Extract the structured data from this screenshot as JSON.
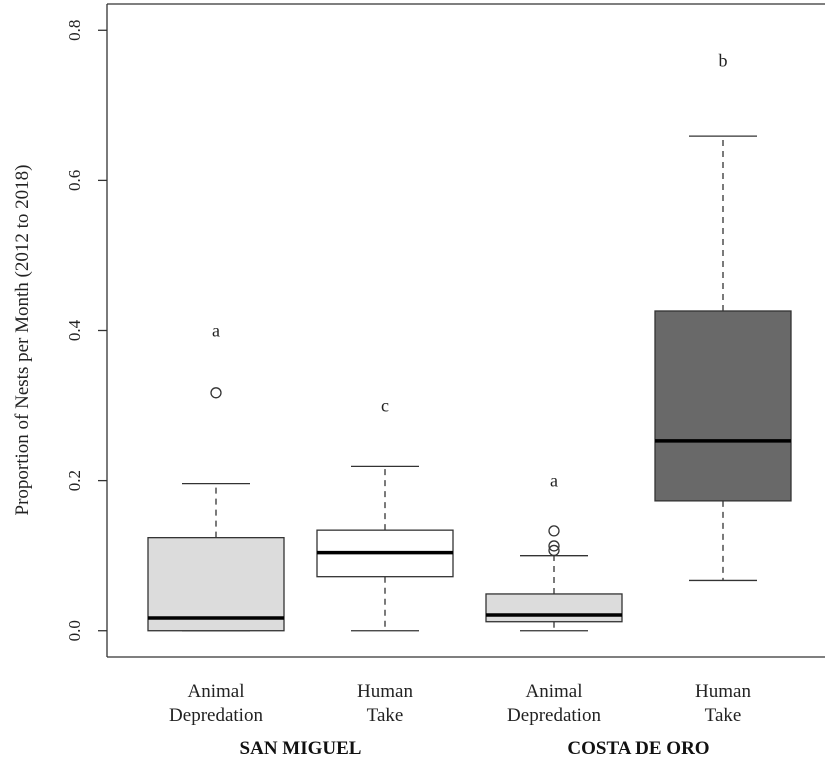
{
  "chart_data": {
    "type": "box",
    "ylabel": "Proportion of Nests per Month (2012 to 2018)",
    "xlabel": "",
    "ylim": [
      -0.035,
      0.835
    ],
    "yticks": [
      {
        "value": 0.0,
        "label": "0.0"
      },
      {
        "value": 0.2,
        "label": "0.2"
      },
      {
        "value": 0.4,
        "label": "0.4"
      },
      {
        "value": 0.6,
        "label": "0.6"
      },
      {
        "value": 0.8,
        "label": "0.8"
      }
    ],
    "grid": false,
    "groups": [
      {
        "label": "SAN MIGUEL",
        "boxes": [
          0,
          1
        ]
      },
      {
        "label": "COSTA DE ORO",
        "boxes": [
          2,
          3
        ]
      }
    ],
    "boxes": [
      {
        "category": [
          "Animal",
          "Depredation"
        ],
        "min": 0.0,
        "q1": 0.0,
        "median": 0.017,
        "q3": 0.124,
        "max": 0.196,
        "outliers": [
          0.317
        ],
        "letter": "a",
        "letter_y": 0.4,
        "color": "#dcdcdc"
      },
      {
        "category": [
          "Human",
          "Take"
        ],
        "min": 0.0,
        "q1": 0.072,
        "median": 0.104,
        "q3": 0.134,
        "max": 0.219,
        "outliers": [],
        "letter": "c",
        "letter_y": 0.3,
        "color": "#ffffff"
      },
      {
        "category": [
          "Animal",
          "Depredation"
        ],
        "min": 0.0,
        "q1": 0.012,
        "median": 0.021,
        "q3": 0.049,
        "max": 0.1,
        "outliers": [
          0.107,
          0.113,
          0.133
        ],
        "letter": "a",
        "letter_y": 0.2,
        "color": "#dcdcdc"
      },
      {
        "category": [
          "Human",
          "Take"
        ],
        "min": 0.067,
        "q1": 0.173,
        "median": 0.253,
        "q3": 0.426,
        "max": 0.659,
        "outliers": [],
        "letter": "b",
        "letter_y": 0.76,
        "color": "#696969"
      }
    ]
  }
}
